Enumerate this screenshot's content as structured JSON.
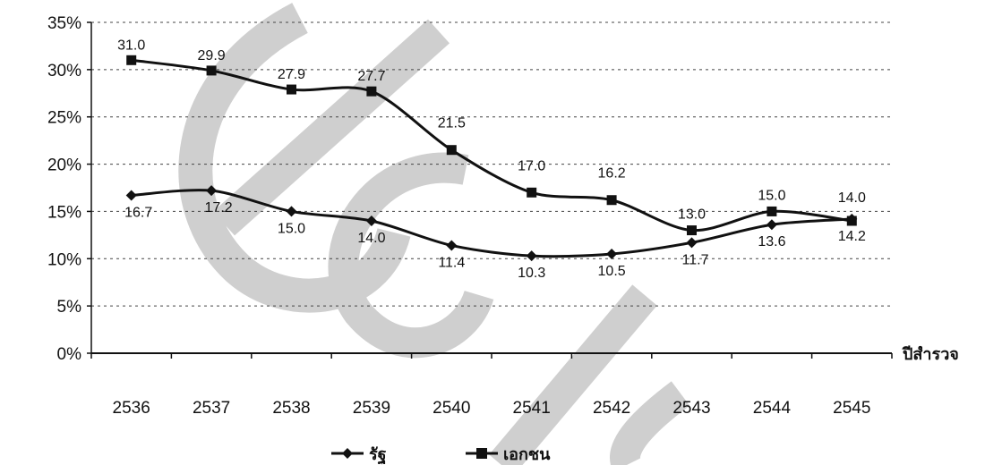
{
  "chart_data": {
    "type": "line",
    "title": "",
    "xlabel": "ปีสำรวจ",
    "ylabel": "",
    "categories": [
      "2536",
      "2537",
      "2538",
      "2539",
      "2540",
      "2541",
      "2542",
      "2543",
      "2544",
      "2545"
    ],
    "ylim": [
      0,
      35
    ],
    "y_ticks": [
      "0%",
      "5%",
      "10%",
      "15%",
      "20%",
      "25%",
      "30%",
      "35%"
    ],
    "grid": true,
    "legend_position": "bottom",
    "series": [
      {
        "name": "รัฐ",
        "marker": "diamond",
        "values": [
          16.7,
          17.2,
          15.0,
          14.0,
          11.4,
          10.3,
          10.5,
          11.7,
          13.6,
          14.2
        ],
        "labels": [
          "16.7",
          "17.2",
          "15.0",
          "14.0",
          "11.4",
          "10.3",
          "10.5",
          "11.7",
          "13.6",
          "14.2"
        ]
      },
      {
        "name": "เอกชน",
        "marker": "square",
        "values": [
          31.0,
          29.9,
          27.9,
          27.7,
          21.5,
          17.0,
          16.2,
          13.0,
          15.0,
          14.0
        ],
        "labels": [
          "31.0",
          "29.9",
          "27.9",
          "27.7",
          "21.5",
          "17.0",
          "16.2",
          "13.0",
          "15.0",
          "14.0"
        ]
      }
    ],
    "line_color": "#111111",
    "watermark_color": "#cfcfcf"
  }
}
